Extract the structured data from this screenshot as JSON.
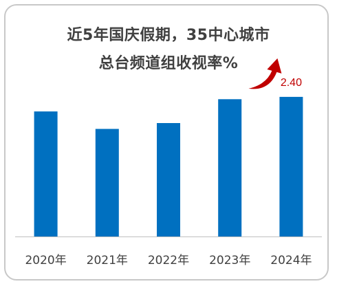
{
  "chart_data": {
    "type": "bar",
    "title_lines": [
      "近5年国庆假期，35中心城市",
      "总台频道组收视率%"
    ],
    "categories": [
      "2020年",
      "2021年",
      "2022年",
      "2023年",
      "2024年"
    ],
    "values": [
      2.15,
      1.85,
      1.95,
      2.36,
      2.4
    ],
    "data_labels": [
      "",
      "",
      "",
      "",
      "2.40"
    ],
    "ylim": [
      0,
      2.6
    ],
    "grid": false,
    "colors": {
      "bar": "#0070c0",
      "label": "#c00000",
      "arrow": "#c00000",
      "axis": "#bfbfbf",
      "tick_text": "#404040"
    },
    "annotations": [
      {
        "icon": "up-trend-arrow-icon",
        "category_index": 4
      }
    ]
  }
}
